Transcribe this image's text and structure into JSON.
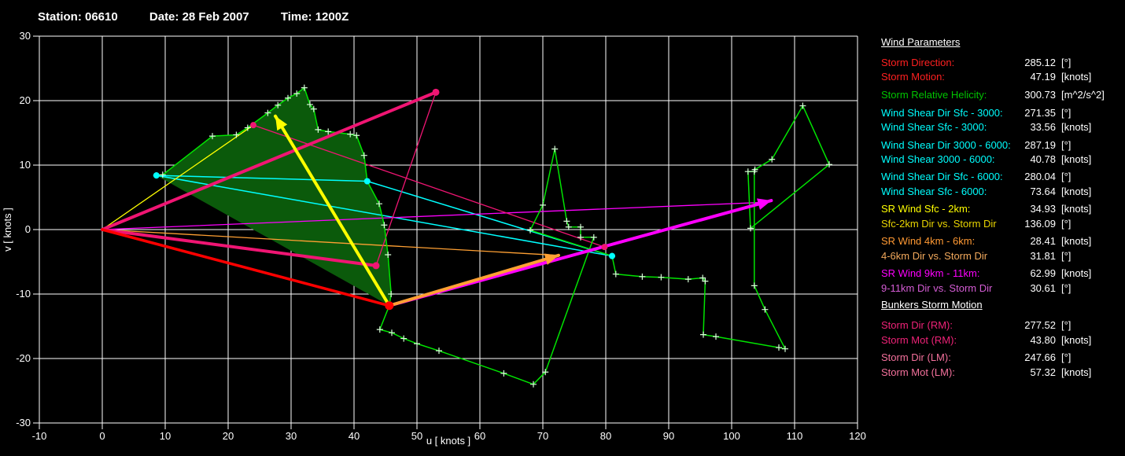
{
  "title": {
    "station_label": "Station:",
    "station": "06610",
    "date_label": "Date:",
    "date": "28 Feb 2007",
    "time_label": "Time:",
    "time": "1200Z"
  },
  "chart_data": {
    "type": "line",
    "subtype": "hodograph",
    "xlabel": "u  [ knots ]",
    "ylabel": "v  [ knots ]",
    "xlim": [
      -10,
      120
    ],
    "ylim": [
      -30,
      30
    ],
    "xtick_step": 10,
    "ytick_step": 10,
    "grid": true,
    "colors": {
      "grid": "#ffffff",
      "trace": "#00e400",
      "trace_marker": "#d8ffd8",
      "srh_fill": "#0b5a0b",
      "cyan": "#00ffff",
      "red": "#ff0000",
      "pink": "#f01573",
      "yellow": "#ffff00",
      "orange": "#ffa033",
      "magenta": "#ff00ff"
    },
    "trace": [
      [
        8.6,
        8.4
      ],
      [
        9.6,
        8.5
      ],
      [
        17.5,
        14.5
      ],
      [
        21.3,
        14.7
      ],
      [
        23.1,
        15.8
      ],
      [
        26.3,
        18.1
      ],
      [
        27.9,
        19.3
      ],
      [
        29.5,
        20.4
      ],
      [
        30.9,
        21.1
      ],
      [
        32.1,
        22.0
      ],
      [
        33.0,
        19.4
      ],
      [
        33.6,
        18.7
      ],
      [
        34.3,
        15.5
      ],
      [
        35.9,
        15.2
      ],
      [
        39.4,
        14.8
      ],
      [
        40.4,
        14.6
      ],
      [
        41.6,
        11.5
      ],
      [
        42.1,
        7.5
      ],
      [
        44.0,
        4.0
      ],
      [
        44.8,
        0.7
      ],
      [
        45.4,
        -3.9
      ],
      [
        45.9,
        -10.0
      ],
      [
        45.6,
        -11.8
      ],
      [
        44.1,
        -15.5
      ],
      [
        46.0,
        -16.0
      ],
      [
        47.9,
        -16.9
      ],
      [
        50.0,
        -17.7
      ],
      [
        53.5,
        -18.8
      ],
      [
        63.8,
        -22.3
      ],
      [
        68.5,
        -24.0
      ],
      [
        70.4,
        -22.1
      ],
      [
        78.1,
        -1.2
      ],
      [
        76.0,
        -1.2
      ],
      [
        76.0,
        0.4
      ],
      [
        74.1,
        0.4
      ],
      [
        73.8,
        1.3
      ],
      [
        71.9,
        12.5
      ],
      [
        70.0,
        3.8
      ],
      [
        68.0,
        -0.1
      ],
      [
        81.0,
        -4.1
      ],
      [
        81.6,
        -6.9
      ],
      [
        85.8,
        -7.3
      ],
      [
        88.8,
        -7.4
      ],
      [
        93.1,
        -7.7
      ],
      [
        95.4,
        -7.5
      ],
      [
        95.8,
        -8.0
      ],
      [
        95.5,
        -16.3
      ],
      [
        97.5,
        -16.6
      ],
      [
        107.5,
        -18.3
      ],
      [
        108.5,
        -18.5
      ],
      [
        105.3,
        -12.4
      ],
      [
        103.6,
        -8.7
      ],
      [
        103.6,
        9.0
      ],
      [
        102.6,
        9.0
      ],
      [
        103.0,
        0.2
      ],
      [
        115.5,
        10.1
      ],
      [
        111.3,
        19.2
      ],
      [
        106.4,
        10.9
      ],
      [
        103.7,
        9.3
      ]
    ],
    "srh_fill_end_index": 23,
    "vectors": [
      {
        "name": "shear-sfc-3km-line",
        "color": "cyan",
        "width": 1.5,
        "layer": 1,
        "from": [
          8.6,
          8.4
        ],
        "to": [
          42.1,
          7.5
        ],
        "arrow": false
      },
      {
        "name": "shear-3km-6km-line",
        "color": "cyan",
        "width": 1.5,
        "layer": 1,
        "from": [
          42.1,
          7.5
        ],
        "to": [
          81.0,
          -4.1
        ],
        "arrow": false
      },
      {
        "name": "shear-sfc-6km-line",
        "color": "cyan",
        "width": 1.5,
        "layer": 1,
        "from": [
          8.6,
          8.4
        ],
        "to": [
          81.0,
          -4.1
        ],
        "arrow": false
      },
      {
        "name": "mean-wind-sfc-2km-line",
        "color": "yellow",
        "width": 1.3,
        "layer": 1,
        "from": [
          0,
          0
        ],
        "to": [
          24.0,
          16.2
        ],
        "arrow": false
      },
      {
        "name": "mean-wind-4-6km-line",
        "color": "orange",
        "width": 1.3,
        "layer": 1,
        "from": [
          0,
          0
        ],
        "to": [
          72.5,
          -4.0
        ],
        "arrow": false
      },
      {
        "name": "mean-wind-9-11km-line",
        "color": "magenta",
        "width": 1.3,
        "layer": 1,
        "from": [
          0,
          0
        ],
        "to": [
          104.5,
          4.2
        ],
        "arrow": false
      },
      {
        "name": "bunkers-lm-rm-connector",
        "color": "pink",
        "width": 1.3,
        "layer": 1,
        "from": [
          53.0,
          21.3
        ],
        "to": [
          43.5,
          -5.6
        ],
        "arrow": false
      },
      {
        "name": "mean-wind-connector",
        "color": "pink",
        "width": 1.3,
        "layer": 1,
        "from": [
          24.0,
          16.2
        ],
        "to": [
          79.8,
          -2.7
        ],
        "arrow": false
      },
      {
        "name": "bunkers-rm-vector",
        "color": "pink",
        "width": 4,
        "layer": 2,
        "from": [
          0,
          0
        ],
        "to": [
          43.5,
          -5.6
        ],
        "arrow": false
      },
      {
        "name": "bunkers-lm-vector",
        "color": "pink",
        "width": 4,
        "layer": 2,
        "from": [
          0,
          0
        ],
        "to": [
          53.0,
          21.3
        ],
        "arrow": false
      },
      {
        "name": "storm-motion-vector",
        "color": "red",
        "width": 3.5,
        "layer": 2,
        "from": [
          0,
          0
        ],
        "to": [
          45.6,
          -11.8
        ],
        "arrow": false
      },
      {
        "name": "sr-wind-sfc-2km-arrow",
        "color": "yellow",
        "width": 4,
        "layer": 2,
        "from": [
          45.6,
          -11.8
        ],
        "to": [
          27.5,
          17.6
        ],
        "arrow": true
      },
      {
        "name": "sr-wind-9-11km-arrow",
        "color": "magenta",
        "width": 4,
        "layer": 2,
        "from": [
          45.6,
          -11.8
        ],
        "to": [
          106.3,
          4.5
        ],
        "arrow": true
      },
      {
        "name": "sr-wind-4-6km-arrow",
        "color": "orange",
        "width": 4,
        "layer": 2,
        "from": [
          45.6,
          -11.8
        ],
        "to": [
          72.5,
          -4.0
        ],
        "arrow": true
      }
    ],
    "dots": [
      {
        "name": "surface-wind-dot",
        "color": "cyan",
        "r": 4,
        "at": [
          8.6,
          8.4
        ]
      },
      {
        "name": "wind-3km-dot",
        "color": "cyan",
        "r": 4,
        "at": [
          42.1,
          7.5
        ]
      },
      {
        "name": "wind-6km-dot",
        "color": "cyan",
        "r": 4,
        "at": [
          81.0,
          -4.1
        ]
      },
      {
        "name": "mean-wind-sfc-2km-dot",
        "color": "pink",
        "r": 4,
        "at": [
          24.0,
          16.2
        ]
      },
      {
        "name": "mean-wind-4-6km-dot",
        "color": "pink",
        "r": 4,
        "at": [
          79.8,
          -2.7
        ]
      },
      {
        "name": "bunkers-lm-dot",
        "color": "pink",
        "r": 4.5,
        "at": [
          53.0,
          21.3
        ]
      },
      {
        "name": "bunkers-rm-dot",
        "color": "pink",
        "r": 4.5,
        "at": [
          43.5,
          -5.6
        ]
      },
      {
        "name": "storm-motion-dot",
        "color": "red",
        "r": 5.5,
        "at": [
          45.6,
          -11.8
        ]
      }
    ]
  },
  "panel": {
    "header": "Wind Parameters",
    "bunkers_header": "Bunkers Storm Motion",
    "groups": [
      {
        "rows": [
          {
            "label": "Storm Direction:",
            "value": "285.12",
            "unit": "[°]",
            "color": "#ff2020"
          },
          {
            "label": "Storm Motion:",
            "value": "47.19",
            "unit": "[knots]",
            "color": "#ff2020"
          }
        ]
      },
      {
        "rows": [
          {
            "label": "Storm Relative Helicity:",
            "value": "300.73",
            "unit": "[m^2/s^2]",
            "color": "#00c400"
          }
        ]
      },
      {
        "rows": [
          {
            "label": "Wind Shear Dir Sfc - 3000:",
            "value": "271.35",
            "unit": "[°]",
            "color": "#00ffff"
          },
          {
            "label": "Wind Shear Sfc - 3000:",
            "value": "33.56",
            "unit": "[knots]",
            "color": "#00ffff"
          }
        ]
      },
      {
        "rows": [
          {
            "label": "Wind Shear Dir 3000 - 6000:",
            "value": "287.19",
            "unit": "[°]",
            "color": "#00ffff"
          },
          {
            "label": "Wind Shear 3000 - 6000:",
            "value": "40.78",
            "unit": "[knots]",
            "color": "#00ffff"
          }
        ]
      },
      {
        "rows": [
          {
            "label": "Wind Shear Dir Sfc - 6000:",
            "value": "280.04",
            "unit": "[°]",
            "color": "#00ffff"
          },
          {
            "label": "Wind Shear Sfc - 6000:",
            "value": "73.64",
            "unit": "[knots]",
            "color": "#00ffff"
          }
        ]
      },
      {
        "rows": [
          {
            "label": "SR Wind Sfc - 2km:",
            "value": "34.93",
            "unit": "[knots]",
            "color": "#ffff00"
          },
          {
            "label": "Sfc-2km Dir vs. Storm Dir",
            "value": "136.09",
            "unit": "[°]",
            "color": "#e8d400"
          }
        ]
      },
      {
        "rows": [
          {
            "label": "SR Wind 4km - 6km:",
            "value": "28.41",
            "unit": "[knots]",
            "color": "#ff9933"
          },
          {
            "label": "4-6km Dir vs. Storm Dir",
            "value": "31.81",
            "unit": "[°]",
            "color": "#f2a95c"
          }
        ]
      },
      {
        "rows": [
          {
            "label": "SR Wind 9km - 11km:",
            "value": "62.99",
            "unit": "[knots]",
            "color": "#ff00ff"
          },
          {
            "label": "9-11km Dir vs. Storm Dir",
            "value": "30.61",
            "unit": "[°]",
            "color": "#d45cd4"
          }
        ]
      }
    ],
    "bunkers_groups": [
      {
        "rows": [
          {
            "label": "Storm Dir (RM):",
            "value": "277.52",
            "unit": "[°]",
            "color": "#ee2277"
          },
          {
            "label": "Storm Mot (RM):",
            "value": "43.80",
            "unit": "[knots]",
            "color": "#ee2277"
          }
        ]
      },
      {
        "rows": [
          {
            "label": "Storm Dir (LM):",
            "value": "247.66",
            "unit": "[°]",
            "color": "#f4719c"
          },
          {
            "label": "Storm Mot (LM):",
            "value": "57.32",
            "unit": "[knots]",
            "color": "#f4719c"
          }
        ]
      }
    ]
  }
}
